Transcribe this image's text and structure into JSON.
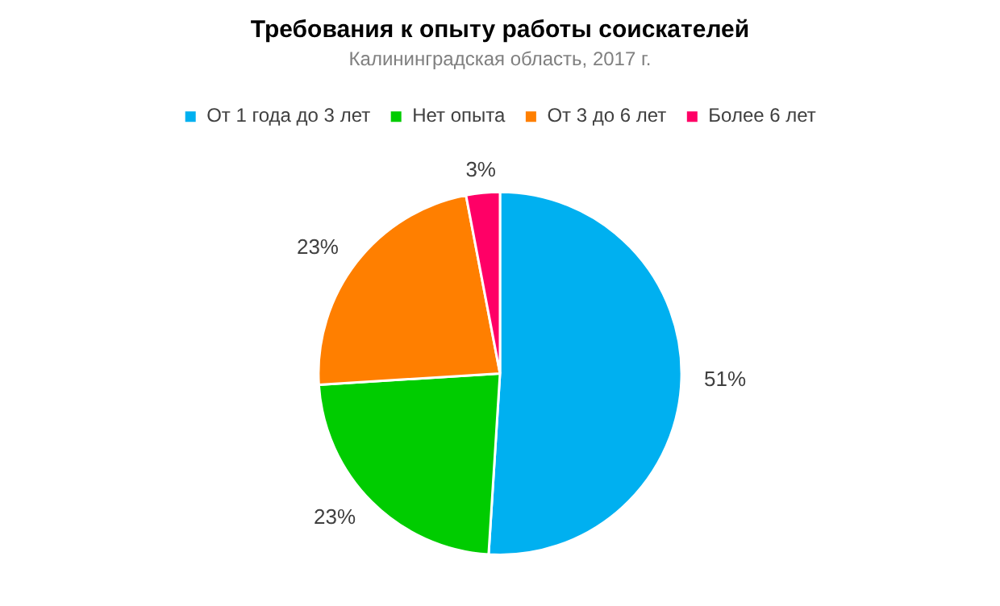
{
  "chart_data": {
    "type": "pie",
    "title": "Требования к опыту работы соискателей",
    "subtitle": "Калининградская область, 2017 г.",
    "categories": [
      "От 1 года до 3 лет",
      "Нет опыта",
      "От 3 до 6 лет",
      "Более 6 лет"
    ],
    "values": [
      51,
      23,
      23,
      3
    ],
    "colors": [
      "#00b0f0",
      "#00cc00",
      "#ff7f00",
      "#ff0066"
    ],
    "value_labels": [
      "51%",
      "23%",
      "23%",
      "3%"
    ],
    "legend": "top"
  }
}
